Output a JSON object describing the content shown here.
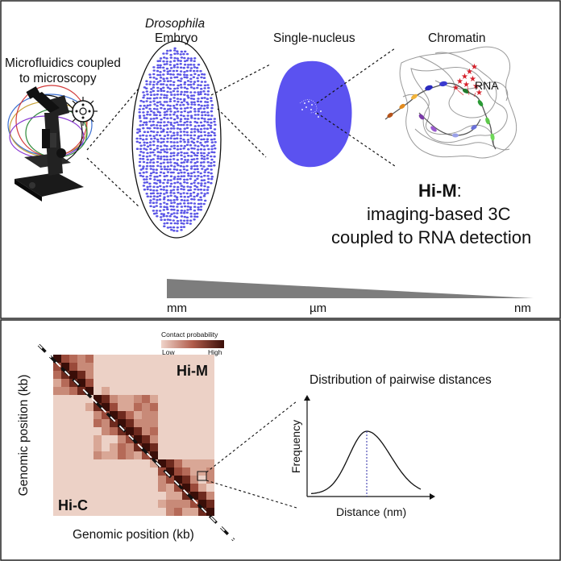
{
  "top_panel": {
    "microscope_label_line1": "Microfluidics coupled",
    "microscope_label_line2": "to microscopy",
    "embryo_label_species": "Drosophila",
    "embryo_label": "Embryo",
    "nucleus_label": "Single-nucleus",
    "chromatin_label": "Chromatin",
    "rna_label": "RNA",
    "himc_title_bold": "Hi-M",
    "himc_title_colon": ":",
    "himc_line2": "imaging-based 3C",
    "himc_line3": "coupled to RNA detection",
    "scale": {
      "left": "mm",
      "middle": "µm",
      "right": "nm"
    },
    "colors": {
      "nucleus": "#5b52f0",
      "embryo_dots": "#5a55e6",
      "rna_stars": "#d6202a"
    }
  },
  "bottom_panel": {
    "legend_title": "Contact probability",
    "legend_low": "Low",
    "legend_high": "High",
    "map_label_top": "Hi-M",
    "map_label_bottom": "Hi-C",
    "y_axis_label": "Genomic position (kb)",
    "x_axis_label": "Genomic position (kb)",
    "distribution_title": "Distribution of pairwise distances",
    "dist_y_label": "Frequency",
    "dist_x_label": "Distance (nm)",
    "colors": {
      "low": "#ecd1c6",
      "high": "#3a0e08"
    }
  }
}
